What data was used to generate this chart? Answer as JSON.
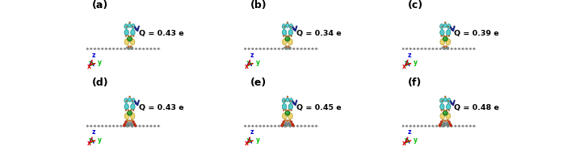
{
  "panels": [
    {
      "label": "(a)",
      "q_text": "Q = 0.43 e",
      "row": 0,
      "col": 0,
      "has_oxygen": false
    },
    {
      "label": "(b)",
      "q_text": "Q = 0.34 e",
      "row": 0,
      "col": 1,
      "has_oxygen": false
    },
    {
      "label": "(c)",
      "q_text": "Q = 0.39 e",
      "row": 0,
      "col": 2,
      "has_oxygen": false
    },
    {
      "label": "(d)",
      "q_text": "Q = 0.43 e",
      "row": 1,
      "col": 0,
      "has_oxygen": true
    },
    {
      "label": "(e)",
      "q_text": "Q = 0.45 e",
      "row": 1,
      "col": 1,
      "has_oxygen": true
    },
    {
      "label": "(f)",
      "q_text": "Q = 0.48 e",
      "row": 1,
      "col": 2,
      "has_oxygen": true
    }
  ],
  "figsize": [
    6.97,
    1.92
  ],
  "dpi": 100,
  "axis_colors": {
    "x": "#dd0000",
    "y": "#00bb00",
    "z": "#0000dd"
  },
  "chain_color": "#888888",
  "chain_edge": "#555555",
  "teal_color": "#3ec8c8",
  "yellow_color": "#e8d060",
  "yellow_edge": "#b89820",
  "green_color": "#30a030",
  "green_edge": "#156015",
  "orange_color": "#e07820",
  "orange_edge": "#804010",
  "red_color": "#cc3310",
  "red_edge": "#881100",
  "gray_base": "#909090",
  "arrow_color": "#1a237e",
  "text_color": "#000000"
}
